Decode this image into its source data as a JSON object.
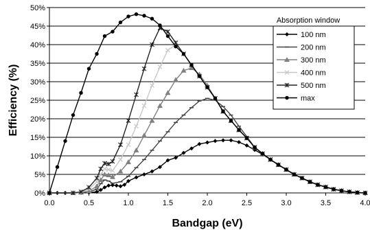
{
  "chart_data": {
    "type": "line",
    "xlabel": "Bandgap (eV)",
    "ylabel": "Efficiency (%)",
    "xlim": [
      0,
      4
    ],
    "ylim": [
      0,
      50
    ],
    "x_ticks": [
      "0.0",
      "0.5",
      "1.0",
      "1.5",
      "2.0",
      "2.5",
      "3.0",
      "3.5",
      "4.0"
    ],
    "y_ticks": [
      "0%",
      "5%",
      "10%",
      "15%",
      "20%",
      "25%",
      "30%",
      "35%",
      "40%",
      "45%",
      "50%"
    ],
    "grid": "horizontal",
    "legend": {
      "title": "Absorption window",
      "placement": "top-right"
    },
    "series": [
      {
        "name": "100 nm",
        "marker": "diamond",
        "color": "#000000",
        "points": [
          [
            0,
            0
          ],
          [
            0.1,
            0
          ],
          [
            0.2,
            0
          ],
          [
            0.3,
            0
          ],
          [
            0.4,
            0.05
          ],
          [
            0.5,
            0.1
          ],
          [
            0.6,
            0.3
          ],
          [
            0.65,
            0.8
          ],
          [
            0.7,
            1.5
          ],
          [
            0.75,
            2.0
          ],
          [
            0.8,
            2.1
          ],
          [
            0.85,
            2.0
          ],
          [
            0.9,
            1.8
          ],
          [
            0.95,
            2.2
          ],
          [
            1.0,
            3.2
          ],
          [
            1.1,
            4.2
          ],
          [
            1.2,
            5.0
          ],
          [
            1.3,
            5.8
          ],
          [
            1.4,
            7.0
          ],
          [
            1.5,
            8.8
          ],
          [
            1.6,
            9.5
          ],
          [
            1.7,
            10.8
          ],
          [
            1.8,
            12.0
          ],
          [
            1.9,
            13.2
          ],
          [
            2.0,
            13.6
          ],
          [
            2.1,
            14.0
          ],
          [
            2.2,
            14.2
          ],
          [
            2.3,
            14.2
          ],
          [
            2.4,
            13.7
          ],
          [
            2.5,
            12.8
          ],
          [
            2.6,
            11.6
          ],
          [
            2.7,
            10.4
          ],
          [
            2.8,
            9.0
          ],
          [
            2.9,
            7.6
          ],
          [
            3.0,
            6.3
          ],
          [
            3.1,
            5.0
          ],
          [
            3.2,
            4.0
          ],
          [
            3.3,
            3.0
          ],
          [
            3.4,
            2.2
          ],
          [
            3.5,
            1.6
          ],
          [
            3.6,
            1.0
          ],
          [
            3.7,
            0.6
          ],
          [
            3.8,
            0.3
          ],
          [
            3.9,
            0.1
          ],
          [
            4.0,
            0
          ]
        ]
      },
      {
        "name": "200 nm",
        "marker": "dash",
        "color": "#444444",
        "points": [
          [
            0,
            0
          ],
          [
            0.3,
            0
          ],
          [
            0.4,
            0.1
          ],
          [
            0.5,
            0.3
          ],
          [
            0.6,
            1.0
          ],
          [
            0.65,
            2.5
          ],
          [
            0.7,
            3.5
          ],
          [
            0.75,
            3.2
          ],
          [
            0.8,
            2.6
          ],
          [
            0.9,
            3.0
          ],
          [
            1.0,
            4.5
          ],
          [
            1.1,
            6.8
          ],
          [
            1.2,
            9.0
          ],
          [
            1.3,
            11.5
          ],
          [
            1.4,
            14.0
          ],
          [
            1.5,
            16.5
          ],
          [
            1.6,
            19.0
          ],
          [
            1.7,
            21.0
          ],
          [
            1.8,
            23.0
          ],
          [
            1.9,
            24.8
          ],
          [
            2.0,
            25.5
          ],
          [
            2.1,
            25.0
          ],
          [
            2.2,
            23.3
          ],
          [
            2.3,
            21.0
          ],
          [
            2.4,
            18.0
          ],
          [
            2.5,
            15.2
          ],
          [
            2.6,
            12.3
          ],
          [
            2.7,
            10.6
          ],
          [
            2.8,
            9.0
          ],
          [
            2.9,
            7.6
          ],
          [
            3.0,
            6.3
          ],
          [
            3.1,
            5.0
          ],
          [
            3.2,
            4.0
          ],
          [
            3.3,
            3.0
          ],
          [
            3.4,
            2.2
          ],
          [
            3.5,
            1.6
          ],
          [
            3.6,
            1.0
          ],
          [
            3.7,
            0.6
          ],
          [
            3.8,
            0.3
          ],
          [
            3.9,
            0.1
          ],
          [
            4.0,
            0
          ]
        ]
      },
      {
        "name": "300 nm",
        "marker": "triangle",
        "color": "#808080",
        "points": [
          [
            0,
            0
          ],
          [
            0.3,
            0
          ],
          [
            0.4,
            0.1
          ],
          [
            0.5,
            0.5
          ],
          [
            0.6,
            1.8
          ],
          [
            0.65,
            3.5
          ],
          [
            0.7,
            5.0
          ],
          [
            0.75,
            4.8
          ],
          [
            0.8,
            4.3
          ],
          [
            0.9,
            5.8
          ],
          [
            1.0,
            8.3
          ],
          [
            1.1,
            11.5
          ],
          [
            1.2,
            15.5
          ],
          [
            1.3,
            19.5
          ],
          [
            1.4,
            23.5
          ],
          [
            1.5,
            27.0
          ],
          [
            1.6,
            30.5
          ],
          [
            1.7,
            33.0
          ],
          [
            1.8,
            33.7
          ],
          [
            1.9,
            32.0
          ],
          [
            2.0,
            29.0
          ],
          [
            2.1,
            25.5
          ],
          [
            2.2,
            22.0
          ],
          [
            2.3,
            19.5
          ],
          [
            2.4,
            17.0
          ],
          [
            2.5,
            14.8
          ],
          [
            2.6,
            12.3
          ],
          [
            2.7,
            10.6
          ],
          [
            2.8,
            9.0
          ],
          [
            2.9,
            7.6
          ],
          [
            3.0,
            6.3
          ],
          [
            3.1,
            5.0
          ],
          [
            3.2,
            4.0
          ],
          [
            3.3,
            3.0
          ],
          [
            3.4,
            2.2
          ],
          [
            3.5,
            1.6
          ],
          [
            3.6,
            1.0
          ],
          [
            3.7,
            0.6
          ],
          [
            3.8,
            0.3
          ],
          [
            3.9,
            0.1
          ],
          [
            4.0,
            0
          ]
        ]
      },
      {
        "name": "400 nm",
        "marker": "cross",
        "color": "#c8c8c8",
        "points": [
          [
            0,
            0
          ],
          [
            0.3,
            0
          ],
          [
            0.4,
            0.2
          ],
          [
            0.5,
            1.0
          ],
          [
            0.6,
            3.0
          ],
          [
            0.65,
            5.0
          ],
          [
            0.7,
            6.5
          ],
          [
            0.75,
            6.3
          ],
          [
            0.8,
            6.0
          ],
          [
            0.9,
            9.0
          ],
          [
            1.0,
            13.0
          ],
          [
            1.1,
            18.0
          ],
          [
            1.2,
            23.5
          ],
          [
            1.3,
            29.0
          ],
          [
            1.4,
            34.0
          ],
          [
            1.5,
            38.5
          ],
          [
            1.6,
            40.0
          ],
          [
            1.7,
            37.5
          ],
          [
            1.8,
            34.5
          ],
          [
            1.9,
            31.5
          ],
          [
            2.0,
            28.5
          ],
          [
            2.1,
            25.5
          ],
          [
            2.2,
            22.0
          ],
          [
            2.3,
            19.5
          ],
          [
            2.4,
            17.0
          ],
          [
            2.5,
            14.8
          ],
          [
            2.6,
            12.3
          ],
          [
            2.7,
            10.6
          ],
          [
            2.8,
            9.0
          ],
          [
            2.9,
            7.6
          ],
          [
            3.0,
            6.3
          ],
          [
            3.1,
            5.0
          ],
          [
            3.2,
            4.0
          ],
          [
            3.3,
            3.0
          ],
          [
            3.4,
            2.2
          ],
          [
            3.5,
            1.6
          ],
          [
            3.6,
            1.0
          ],
          [
            3.7,
            0.6
          ],
          [
            3.8,
            0.3
          ],
          [
            3.9,
            0.1
          ],
          [
            4.0,
            0
          ]
        ]
      },
      {
        "name": "500 nm",
        "marker": "star",
        "color": "#222222",
        "points": [
          [
            0,
            0
          ],
          [
            0.3,
            0
          ],
          [
            0.4,
            0.3
          ],
          [
            0.5,
            1.5
          ],
          [
            0.6,
            4.0
          ],
          [
            0.65,
            6.5
          ],
          [
            0.7,
            8.0
          ],
          [
            0.75,
            7.8
          ],
          [
            0.8,
            8.5
          ],
          [
            0.9,
            13.0
          ],
          [
            1.0,
            19.5
          ],
          [
            1.1,
            26.5
          ],
          [
            1.2,
            33.5
          ],
          [
            1.3,
            40.0
          ],
          [
            1.4,
            44.5
          ],
          [
            1.5,
            43.5
          ],
          [
            1.6,
            40.5
          ],
          [
            1.7,
            37.5
          ],
          [
            1.8,
            34.5
          ],
          [
            1.9,
            31.5
          ],
          [
            2.0,
            28.5
          ],
          [
            2.1,
            25.5
          ],
          [
            2.2,
            22.0
          ],
          [
            2.3,
            19.5
          ],
          [
            2.4,
            17.0
          ],
          [
            2.5,
            14.8
          ],
          [
            2.6,
            12.3
          ],
          [
            2.7,
            10.6
          ],
          [
            2.8,
            9.0
          ],
          [
            2.9,
            7.6
          ],
          [
            3.0,
            6.3
          ],
          [
            3.1,
            5.0
          ],
          [
            3.2,
            4.0
          ],
          [
            3.3,
            3.0
          ],
          [
            3.4,
            2.2
          ],
          [
            3.5,
            1.6
          ],
          [
            3.6,
            1.0
          ],
          [
            3.7,
            0.6
          ],
          [
            3.8,
            0.3
          ],
          [
            3.9,
            0.1
          ],
          [
            4.0,
            0
          ]
        ]
      },
      {
        "name": "max",
        "marker": "circle",
        "color": "#000000",
        "points": [
          [
            0,
            0
          ],
          [
            0.1,
            7.0
          ],
          [
            0.2,
            14.0
          ],
          [
            0.3,
            21.0
          ],
          [
            0.4,
            27.0
          ],
          [
            0.5,
            33.5
          ],
          [
            0.6,
            37.5
          ],
          [
            0.7,
            42.3
          ],
          [
            0.8,
            43.5
          ],
          [
            0.9,
            46.0
          ],
          [
            1.0,
            47.6
          ],
          [
            1.1,
            48.2
          ],
          [
            1.2,
            47.8
          ],
          [
            1.3,
            47.0
          ],
          [
            1.4,
            45.2
          ],
          [
            1.5,
            42.3
          ],
          [
            1.6,
            39.5
          ],
          [
            1.7,
            37.5
          ],
          [
            1.8,
            34.5
          ],
          [
            1.9,
            31.5
          ],
          [
            2.0,
            28.5
          ],
          [
            2.1,
            25.5
          ],
          [
            2.2,
            22.0
          ],
          [
            2.3,
            19.5
          ],
          [
            2.4,
            17.0
          ],
          [
            2.5,
            14.8
          ],
          [
            2.6,
            12.3
          ],
          [
            2.7,
            10.6
          ],
          [
            2.8,
            9.0
          ],
          [
            2.9,
            7.6
          ],
          [
            3.0,
            6.3
          ],
          [
            3.1,
            5.0
          ],
          [
            3.2,
            4.0
          ],
          [
            3.3,
            3.0
          ],
          [
            3.4,
            2.2
          ],
          [
            3.5,
            1.6
          ],
          [
            3.6,
            1.0
          ],
          [
            3.7,
            0.6
          ],
          [
            3.8,
            0.3
          ],
          [
            3.9,
            0.1
          ],
          [
            4.0,
            0
          ]
        ]
      }
    ]
  }
}
